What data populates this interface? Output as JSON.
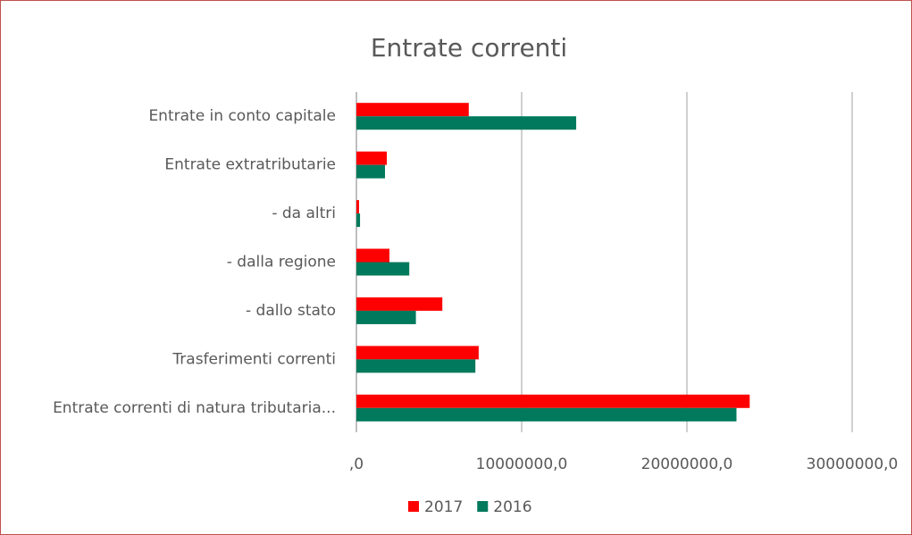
{
  "chart_data": {
    "type": "hbar",
    "title": "Entrate correnti",
    "categories": [
      "Entrate in conto capitale",
      "Entrate extratributarie",
      "- da altri",
      "- dalla regione",
      "- dallo stato",
      "Trasferimenti correnti",
      "Entrate correnti di natura tributaria..."
    ],
    "series": [
      {
        "name": "2017",
        "color": "#ff0000",
        "values": [
          6800000,
          1840000,
          160000,
          2000000,
          5200000,
          7400000,
          23800000
        ]
      },
      {
        "name": "2016",
        "color": "#00795c",
        "values": [
          13300000,
          1730000,
          220000,
          3200000,
          3600000,
          7200000,
          23000000
        ]
      }
    ],
    "xlim": [
      0,
      33000000
    ],
    "xticks": [
      {
        "value": 0,
        "label": ",0"
      },
      {
        "value": 10000000,
        "label": "10000000,0"
      },
      {
        "value": 20000000,
        "label": "20000000,0"
      },
      {
        "value": 30000000,
        "label": "30000000,0"
      }
    ],
    "grid": true,
    "legend": "bottom"
  }
}
